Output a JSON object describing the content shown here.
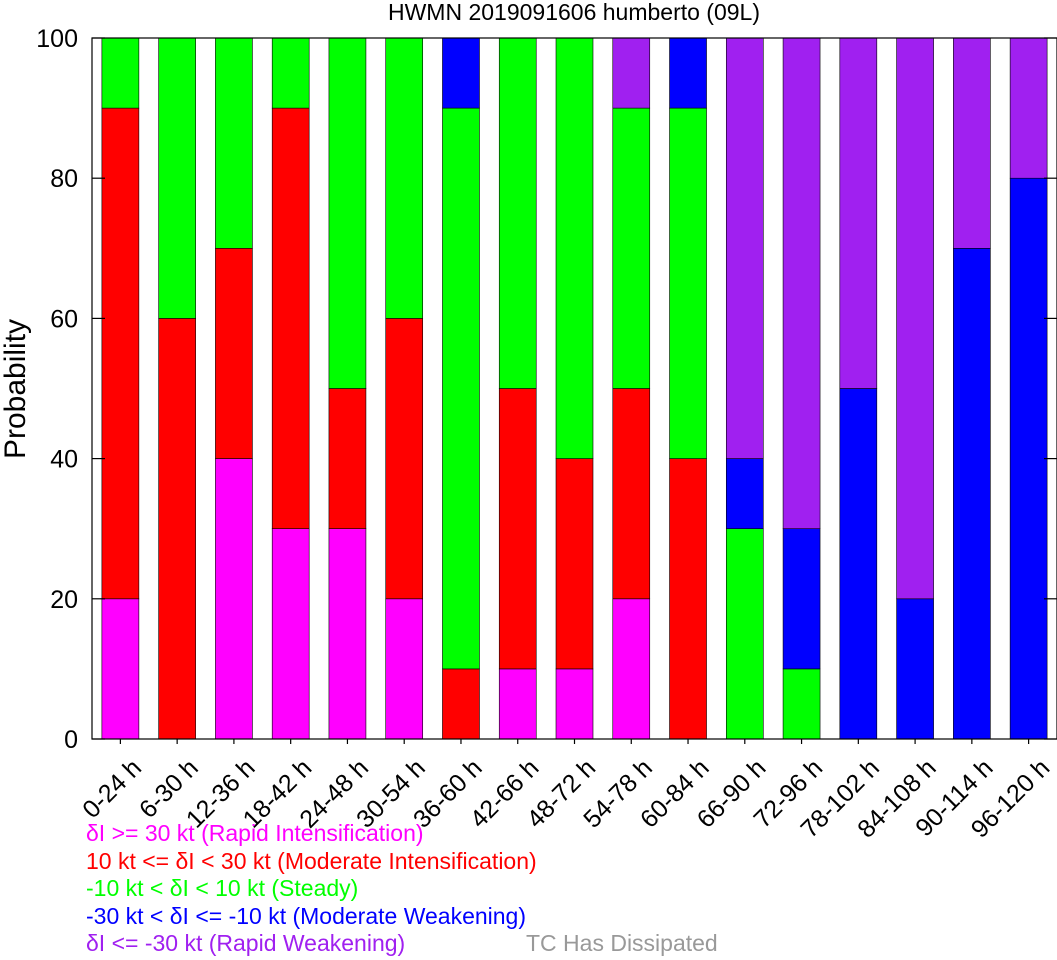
{
  "chart_data": {
    "type": "bar",
    "stacked": true,
    "title": "HWMN 2019091606 humberto (09L)",
    "xlabel": "",
    "ylabel": "Probability",
    "ylim": [
      0,
      100
    ],
    "yticks": [
      0,
      20,
      40,
      60,
      80,
      100
    ],
    "grid": false,
    "categories": [
      "0-24 h",
      "6-30 h",
      "12-36 h",
      "18-42 h",
      "24-48 h",
      "30-54 h",
      "36-60 h",
      "42-66 h",
      "48-72 h",
      "54-78 h",
      "60-84 h",
      "66-90 h",
      "72-96 h",
      "78-102 h",
      "84-108 h",
      "90-114 h",
      "96-120 h"
    ],
    "series": [
      {
        "key": "ri",
        "color": "#ff00ff",
        "values": [
          20,
          0,
          40,
          30,
          30,
          20,
          0,
          10,
          10,
          20,
          0,
          0,
          0,
          0,
          0,
          0,
          0
        ]
      },
      {
        "key": "mi",
        "color": "#ff0000",
        "values": [
          70,
          60,
          30,
          60,
          20,
          40,
          10,
          40,
          30,
          30,
          40,
          0,
          0,
          0,
          0,
          0,
          0
        ]
      },
      {
        "key": "st",
        "color": "#00ff00",
        "values": [
          10,
          40,
          30,
          10,
          50,
          40,
          80,
          50,
          60,
          40,
          50,
          30,
          10,
          0,
          0,
          0,
          0
        ]
      },
      {
        "key": "mw",
        "color": "#0000ff",
        "values": [
          0,
          0,
          0,
          0,
          0,
          0,
          10,
          0,
          0,
          0,
          10,
          10,
          20,
          50,
          20,
          70,
          80
        ]
      },
      {
        "key": "rw",
        "color": "#a020f0",
        "values": [
          0,
          0,
          0,
          0,
          0,
          0,
          0,
          0,
          0,
          10,
          0,
          60,
          70,
          50,
          80,
          30,
          20
        ]
      }
    ],
    "legend": {
      "placement": "bottom-left",
      "entries": [
        {
          "text": "δI >= 30 kt (Rapid Intensification)",
          "color": "#ff00ff"
        },
        {
          "text": "10 kt <= δI < 30 kt (Moderate Intensification)",
          "color": "#ff0000"
        },
        {
          "text": "-10 kt < δI < 10 kt (Steady)",
          "color": "#00ff00"
        },
        {
          "text": "-30 kt < δI <= -10 kt (Moderate Weakening)",
          "color": "#0000ff"
        },
        {
          "text": "δI <= -30 kt (Rapid Weakening)",
          "color": "#a020f0"
        }
      ],
      "extra": {
        "text": "TC Has Dissipated",
        "color": "#999999"
      }
    }
  }
}
